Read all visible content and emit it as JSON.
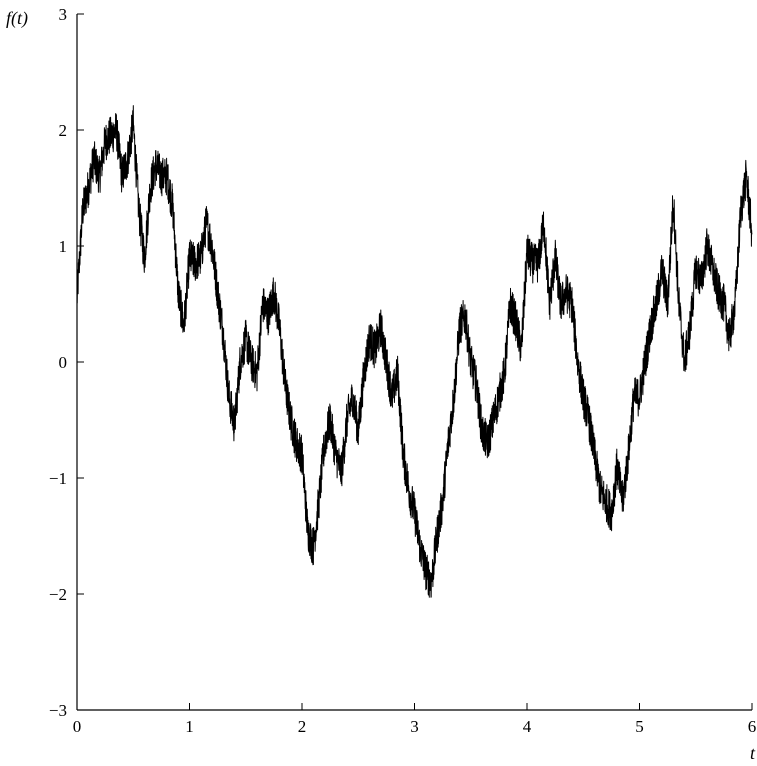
{
  "chart_data": {
    "type": "line",
    "title": "",
    "xlabel": "t",
    "ylabel": "f(t)",
    "xlim": [
      0,
      6
    ],
    "ylim": [
      -3,
      3
    ],
    "x_ticks": [
      "0",
      "1",
      "2",
      "3",
      "4",
      "5",
      "6"
    ],
    "y_ticks": [
      "3",
      "2",
      "1",
      "0",
      "−1",
      "−2",
      "−3"
    ],
    "grid": false,
    "legend": "none",
    "line_color": "#000000",
    "series": [
      {
        "x": [
          0,
          0.05,
          0.1,
          0.15,
          0.2,
          0.25,
          0.3,
          0.35,
          0.4,
          0.45,
          0.5,
          0.55,
          0.6,
          0.65,
          0.7,
          0.75,
          0.8,
          0.85,
          0.9,
          0.95,
          1.0,
          1.05,
          1.1,
          1.15,
          1.2,
          1.25,
          1.3,
          1.35,
          1.4,
          1.45,
          1.5,
          1.55,
          1.6,
          1.65,
          1.7,
          1.75,
          1.8,
          1.85,
          1.9,
          1.95,
          2.0,
          2.05,
          2.1,
          2.15,
          2.2,
          2.25,
          2.3,
          2.35,
          2.4,
          2.45,
          2.5,
          2.55,
          2.6,
          2.65,
          2.7,
          2.75,
          2.8,
          2.85,
          2.9,
          2.95,
          3.0,
          3.05,
          3.1,
          3.15,
          3.2,
          3.25,
          3.3,
          3.35,
          3.4,
          3.45,
          3.5,
          3.55,
          3.6,
          3.65,
          3.7,
          3.75,
          3.8,
          3.85,
          3.9,
          3.95,
          4.0,
          4.05,
          4.1,
          4.15,
          4.2,
          4.25,
          4.3,
          4.35,
          4.4,
          4.45,
          4.5,
          4.55,
          4.6,
          4.65,
          4.7,
          4.75,
          4.8,
          4.85,
          4.9,
          4.95,
          5.0,
          5.05,
          5.1,
          5.15,
          5.2,
          5.25,
          5.3,
          5.35,
          5.4,
          5.45,
          5.5,
          5.55,
          5.6,
          5.65,
          5.7,
          5.75,
          5.8,
          5.85,
          5.9,
          5.95,
          6.0
        ],
        "values": [
          0.55,
          1.3,
          1.5,
          1.75,
          1.6,
          1.9,
          1.95,
          2.0,
          1.6,
          1.75,
          2.05,
          1.3,
          0.9,
          1.5,
          1.7,
          1.6,
          1.6,
          1.35,
          0.6,
          0.3,
          0.9,
          0.85,
          0.9,
          1.2,
          1.0,
          0.6,
          0.25,
          -0.3,
          -0.55,
          0.0,
          0.2,
          0.0,
          -0.1,
          0.5,
          0.4,
          0.6,
          0.3,
          -0.2,
          -0.5,
          -0.7,
          -0.8,
          -1.45,
          -1.6,
          -1.2,
          -0.7,
          -0.5,
          -0.8,
          -0.95,
          -0.5,
          -0.3,
          -0.6,
          -0.1,
          0.2,
          0.1,
          0.3,
          0.0,
          -0.3,
          -0.1,
          -0.8,
          -1.1,
          -1.3,
          -1.6,
          -1.8,
          -1.9,
          -1.5,
          -1.2,
          -0.7,
          -0.3,
          0.3,
          0.4,
          0.0,
          -0.2,
          -0.6,
          -0.7,
          -0.5,
          -0.3,
          -0.1,
          0.5,
          0.35,
          0.1,
          0.95,
          0.85,
          0.85,
          1.2,
          0.5,
          0.9,
          0.5,
          0.6,
          0.5,
          0.0,
          -0.3,
          -0.5,
          -0.8,
          -1.1,
          -1.2,
          -1.3,
          -0.9,
          -1.2,
          -0.8,
          -0.3,
          -0.3,
          0.0,
          0.3,
          0.5,
          0.8,
          0.5,
          1.4,
          0.5,
          0.0,
          0.3,
          0.8,
          0.7,
          1.0,
          0.8,
          0.6,
          0.5,
          0.2,
          0.5,
          1.3,
          1.6,
          1.1
        ]
      }
    ]
  }
}
